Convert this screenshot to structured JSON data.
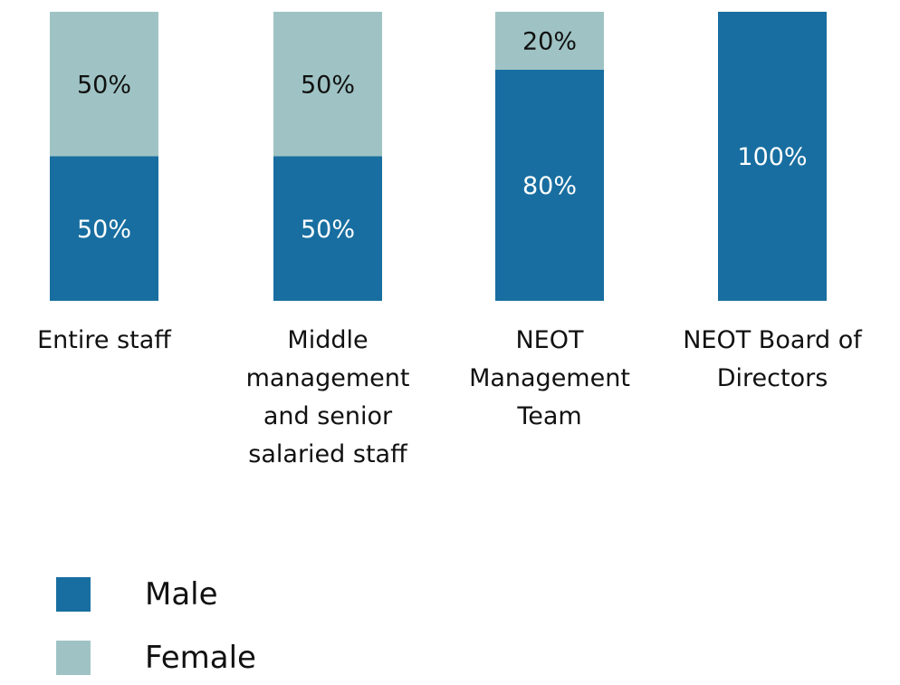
{
  "chart_data": {
    "type": "stacked_bar",
    "categories": [
      "Entire staff",
      "Middle management and senior salaried staff",
      "NEOT Management Team",
      "NEOT Board of Directors"
    ],
    "series": [
      {
        "name": "Male",
        "color": "#186ea0",
        "values": [
          50,
          50,
          80,
          100
        ],
        "value_labels": [
          "50%",
          "50%",
          "80%",
          "100%"
        ]
      },
      {
        "name": "Female",
        "color": "#9fc3c4",
        "values": [
          50,
          50,
          20,
          0
        ],
        "value_labels": [
          "50%",
          "50%",
          "20%",
          null
        ]
      }
    ],
    "ylim": [
      0,
      100
    ]
  }
}
